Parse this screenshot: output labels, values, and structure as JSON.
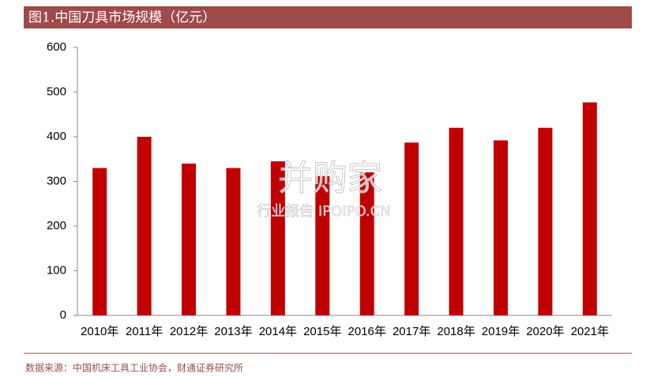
{
  "chart_data": {
    "type": "bar",
    "title": "图1.中国刀具市场规模（亿元）",
    "categories": [
      "2010年",
      "2011年",
      "2012年",
      "2013年",
      "2014年",
      "2015年",
      "2016年",
      "2017年",
      "2018年",
      "2019年",
      "2020年",
      "2021年"
    ],
    "values": [
      330,
      400,
      340,
      330,
      345,
      312,
      320,
      387,
      420,
      392,
      420,
      477
    ],
    "color": "#c00000",
    "ylim": [
      0,
      600
    ],
    "yticks": [
      0,
      100,
      200,
      300,
      400,
      500,
      600
    ],
    "source": "数据来源：中国机床工具工业协会，财通证券研究所",
    "watermark": [
      "并购家",
      "行业报告 IPOIPO.CN"
    ]
  }
}
